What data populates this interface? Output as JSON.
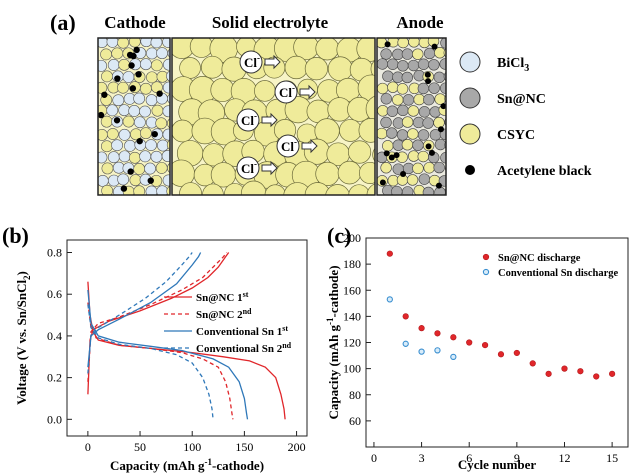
{
  "panels": {
    "a_label": "(a)",
    "b_label": "(b)",
    "c_label": "(c)"
  },
  "schematic": {
    "cathode_title": "Cathode",
    "electrolyte_title": "Solid electrolyte",
    "anode_title": "Anode",
    "ion_label": "Cl",
    "ion_charge": "-",
    "legend": [
      {
        "name": "BiCl",
        "sub": "3",
        "color": "#dce9f5"
      },
      {
        "name": "Sn@NC",
        "sub": "",
        "color": "#a8a8a8"
      },
      {
        "name": "CSYC",
        "sub": "",
        "color": "#efeb9a"
      },
      {
        "name": "Acetylene black",
        "sub": "",
        "color": "#000000"
      }
    ]
  },
  "chart_data": [
    {
      "type": "line",
      "panel": "(b)",
      "xlabel": "Capacity (mAh g-1-cathode)",
      "ylabel": "Voltage (V vs. Sn/SnCl2)",
      "xlim": [
        -20,
        210
      ],
      "ylim": [
        -0.08,
        0.86
      ],
      "x_ticks": [
        0,
        50,
        100,
        150,
        200
      ],
      "y_ticks": [
        0.0,
        0.2,
        0.4,
        0.6,
        0.8
      ],
      "legend_position": "right",
      "series": [
        {
          "name": "Sn@NC 1st",
          "color": "#e0262a",
          "dash": "solid",
          "discharge": [
            [
              0,
              0.66
            ],
            [
              2,
              0.5
            ],
            [
              5,
              0.42
            ],
            [
              10,
              0.38
            ],
            [
              30,
              0.355
            ],
            [
              60,
              0.34
            ],
            [
              100,
              0.32
            ],
            [
              130,
              0.3
            ],
            [
              155,
              0.28
            ],
            [
              170,
              0.25
            ],
            [
              180,
              0.2
            ],
            [
              185,
              0.12
            ],
            [
              188,
              0.05
            ],
            [
              189,
              0.0
            ]
          ],
          "charge": [
            [
              0,
              0.12
            ],
            [
              2,
              0.38
            ],
            [
              5,
              0.43
            ],
            [
              20,
              0.47
            ],
            [
              50,
              0.52
            ],
            [
              80,
              0.58
            ],
            [
              100,
              0.63
            ],
            [
              115,
              0.68
            ],
            [
              125,
              0.73
            ],
            [
              132,
              0.78
            ],
            [
              135,
              0.8
            ]
          ]
        },
        {
          "name": "Sn@NC 2nd",
          "color": "#e0262a",
          "dash": "dashed",
          "discharge": [
            [
              0,
              0.56
            ],
            [
              3,
              0.44
            ],
            [
              8,
              0.39
            ],
            [
              30,
              0.355
            ],
            [
              60,
              0.34
            ],
            [
              90,
              0.32
            ],
            [
              110,
              0.29
            ],
            [
              125,
              0.25
            ],
            [
              132,
              0.18
            ],
            [
              136,
              0.1
            ],
            [
              138,
              0.03
            ],
            [
              139,
              0.0
            ]
          ],
          "charge": [
            [
              0,
              0.18
            ],
            [
              3,
              0.42
            ],
            [
              10,
              0.46
            ],
            [
              30,
              0.49
            ],
            [
              60,
              0.55
            ],
            [
              90,
              0.62
            ],
            [
              110,
              0.68
            ],
            [
              122,
              0.74
            ],
            [
              130,
              0.78
            ],
            [
              133,
              0.8
            ]
          ]
        },
        {
          "name": "Conventional Sn 1st",
          "color": "#2f78b9",
          "dash": "solid",
          "discharge": [
            [
              0,
              0.62
            ],
            [
              3,
              0.46
            ],
            [
              10,
              0.4
            ],
            [
              30,
              0.37
            ],
            [
              60,
              0.35
            ],
            [
              90,
              0.33
            ],
            [
              120,
              0.29
            ],
            [
              135,
              0.25
            ],
            [
              145,
              0.18
            ],
            [
              150,
              0.1
            ],
            [
              152,
              0.03
            ],
            [
              153,
              0.0
            ]
          ],
          "charge": [
            [
              0,
              0.25
            ],
            [
              3,
              0.4
            ],
            [
              10,
              0.43
            ],
            [
              30,
              0.48
            ],
            [
              60,
              0.56
            ],
            [
              85,
              0.65
            ],
            [
              100,
              0.74
            ],
            [
              106,
              0.78
            ],
            [
              108,
              0.8
            ]
          ]
        },
        {
          "name": "Conventional Sn 2nd",
          "color": "#2f78b9",
          "dash": "dashed",
          "discharge": [
            [
              0,
              0.55
            ],
            [
              3,
              0.44
            ],
            [
              10,
              0.39
            ],
            [
              30,
              0.36
            ],
            [
              60,
              0.34
            ],
            [
              85,
              0.31
            ],
            [
              100,
              0.27
            ],
            [
              110,
              0.2
            ],
            [
              116,
              0.12
            ],
            [
              119,
              0.05
            ],
            [
              120,
              0.0
            ]
          ],
          "charge": [
            [
              0,
              0.22
            ],
            [
              3,
              0.41
            ],
            [
              10,
              0.44
            ],
            [
              30,
              0.5
            ],
            [
              55,
              0.58
            ],
            [
              75,
              0.66
            ],
            [
              90,
              0.74
            ],
            [
              97,
              0.78
            ],
            [
              100,
              0.8
            ]
          ]
        }
      ]
    },
    {
      "type": "scatter",
      "panel": "(c)",
      "xlabel": "Cycle number",
      "ylabel": "Capacity (mAh g-1-cathode)",
      "xlim": [
        -0.5,
        16
      ],
      "ylim": [
        40,
        200
      ],
      "x_ticks": [
        0,
        3,
        6,
        9,
        12,
        15
      ],
      "y_ticks": [
        60,
        80,
        100,
        120,
        140,
        160,
        180,
        200
      ],
      "legend_position": "top-right",
      "series": [
        {
          "name": "Sn@NC discharge",
          "color": "#e0262a",
          "x": [
            1,
            2,
            3,
            4,
            5,
            6,
            7,
            8,
            9,
            10,
            11,
            12,
            13,
            14,
            15
          ],
          "values": [
            188,
            140,
            131,
            127,
            124,
            120,
            118,
            111,
            112,
            104,
            96,
            100,
            98,
            94,
            96
          ]
        },
        {
          "name": "Conventional Sn discharge",
          "color": "#3a8fd0",
          "x": [
            1,
            2,
            3,
            4,
            5
          ],
          "values": [
            153,
            119,
            113,
            114,
            109
          ]
        }
      ]
    }
  ]
}
